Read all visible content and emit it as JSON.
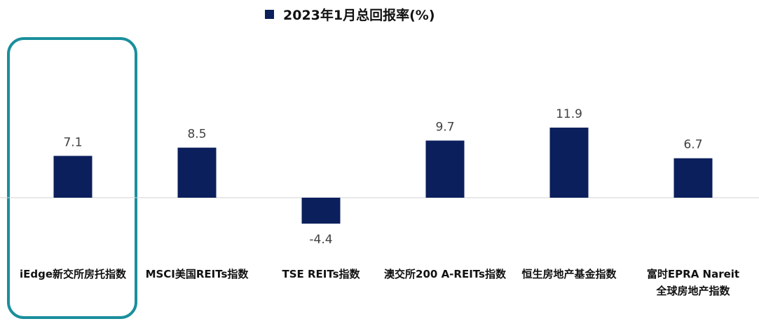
{
  "chart_data": {
    "type": "bar",
    "title": "",
    "xlabel": "",
    "ylabel": "",
    "legend": {
      "position": "top-center",
      "entries": [
        "2023年1月总回报率(%)"
      ]
    },
    "series": [
      {
        "name": "2023年1月总回报率(%)",
        "values": [
          7.1,
          8.5,
          -4.4,
          9.7,
          11.9,
          6.7
        ]
      }
    ],
    "categories": [
      [
        "iEdge新交所房托指数"
      ],
      [
        "MSCI美国REITs指数"
      ],
      [
        "TSE REITs指数"
      ],
      [
        "澳交所200 A-REITs指数"
      ],
      [
        "恒生房地产基金指数"
      ],
      [
        "富时EPRA Nareit",
        "全球房地产指数"
      ]
    ],
    "data_labels": [
      "7.1",
      "8.5",
      "-4.4",
      "9.7",
      "11.9",
      "6.7"
    ],
    "ylim": [
      -6,
      14
    ],
    "grid": false,
    "highlighted_category": 0,
    "colors": {
      "bar": "#0b1f5c",
      "highlight_box": "#1a8f9c",
      "zero_line": "#d0d0d0"
    }
  }
}
